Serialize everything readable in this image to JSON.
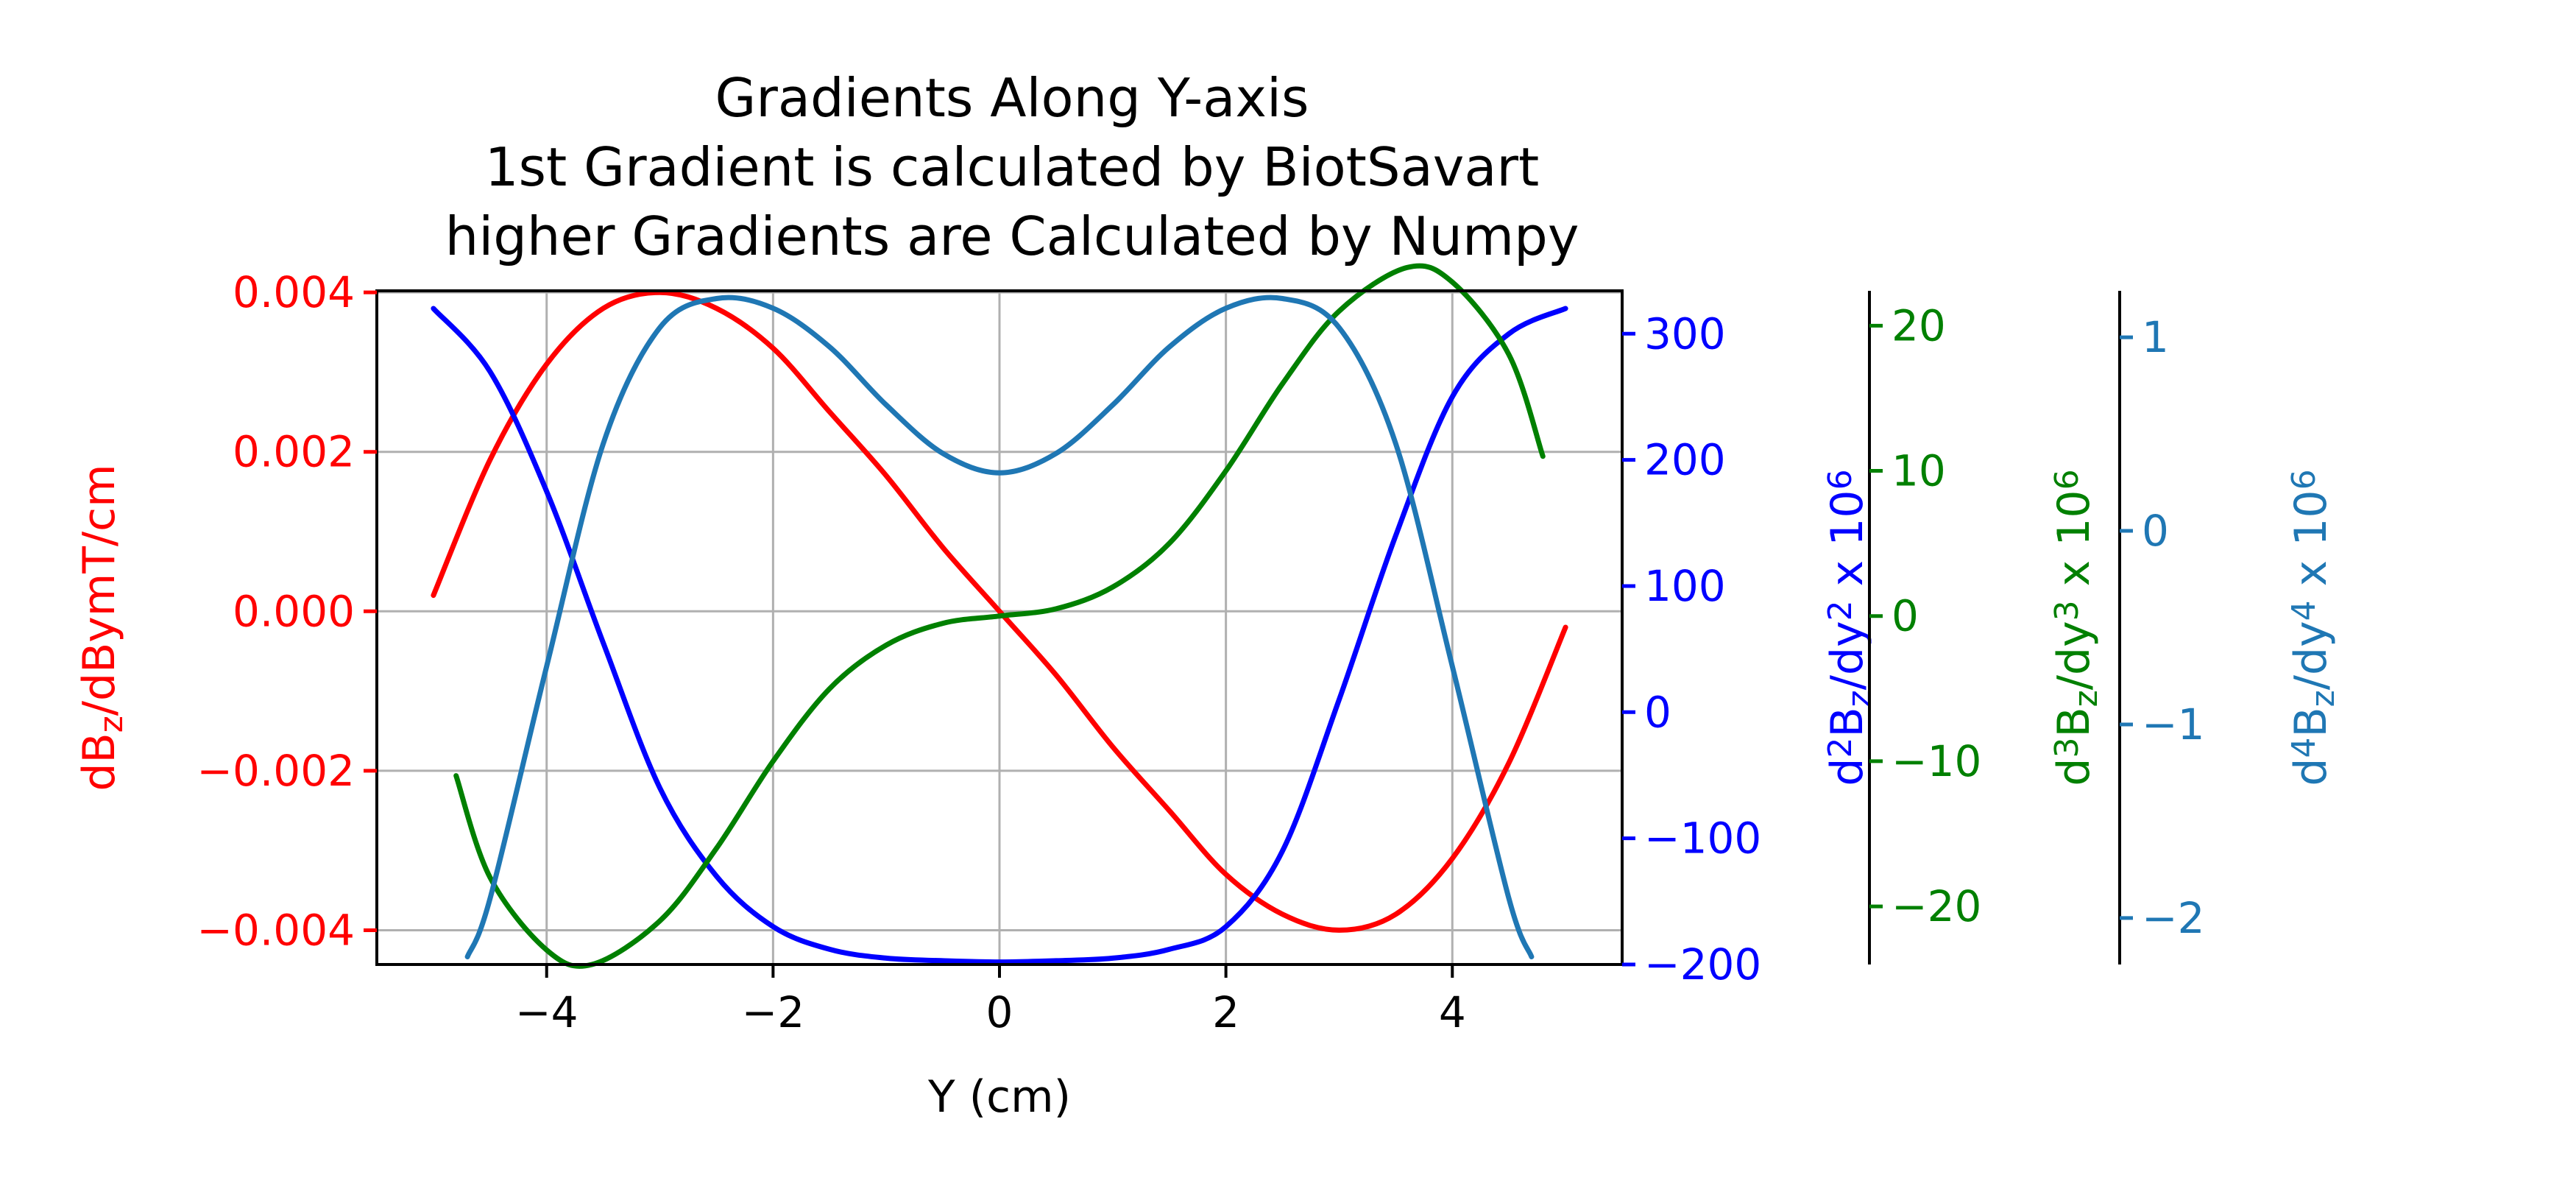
{
  "chart_data": {
    "type": "line",
    "title": [
      "Gradients Along Y-axis",
      "1st Gradient is calculated by BiotSavart",
      "higher Gradients are Calculated by Numpy"
    ],
    "xlabel": "Y (cm)",
    "xlim": [
      -5.5,
      5.5
    ],
    "xticks": [
      -4,
      -2,
      0,
      2,
      4
    ],
    "xtick_labels": [
      "−4",
      "−2",
      "0",
      "2",
      "4"
    ],
    "grid": true,
    "legend": "none",
    "axes": [
      {
        "id": "a1",
        "side": "left",
        "color": "#ff0000",
        "label_parts": [
          "dB",
          "z",
          "/dBymT/cm"
        ],
        "ylim": [
          -0.00443,
          0.00402
        ],
        "ticks": [
          0.004,
          0.002,
          0.0,
          -0.002,
          -0.004
        ],
        "tick_labels": [
          "0.004",
          "0.002",
          "0.000",
          "−0.002",
          "−0.004"
        ]
      },
      {
        "id": "a2",
        "side": "right",
        "color": "#0000ff",
        "label_parts": [
          "d",
          "2",
          "B",
          "z",
          "/dy",
          "2",
          "  x 10",
          "6"
        ],
        "ylim": [
          -200,
          334
        ],
        "ticks": [
          300,
          200,
          100,
          0,
          -100,
          -200
        ],
        "tick_labels": [
          "300",
          "200",
          "100",
          "0",
          "−100",
          "−200"
        ]
      },
      {
        "id": "a3",
        "side": "right",
        "color": "#008000",
        "label_parts": [
          "d",
          "3",
          "B",
          "z",
          "/dy",
          "3",
          "  x 10",
          "6"
        ],
        "ylim": [
          -24.0,
          22.4
        ],
        "ticks": [
          20,
          10,
          0,
          -10,
          -20
        ],
        "tick_labels": [
          "20",
          "10",
          "0",
          "−10",
          "−20"
        ]
      },
      {
        "id": "a4",
        "side": "right",
        "color": "#1f77b4",
        "label_parts": [
          "d",
          "4",
          "B",
          "z",
          "/dy",
          "4",
          "  x 10",
          "6"
        ],
        "ylim": [
          -2.24,
          1.24
        ],
        "ticks": [
          1,
          0,
          -1,
          -2
        ],
        "tick_labels": [
          "1",
          "0",
          "−1",
          "−2"
        ]
      }
    ],
    "series": [
      {
        "axis": "a1",
        "color": "#ff0000",
        "x": [
          -5.0,
          -4.5,
          -4.0,
          -3.5,
          -3.0,
          -2.5,
          -2.0,
          -1.5,
          -1.0,
          -0.5,
          0.0,
          0.5,
          1.0,
          1.5,
          2.0,
          2.5,
          3.0,
          3.5,
          4.0,
          4.5,
          5.0
        ],
        "y": [
          0.0002,
          0.0019,
          0.0031,
          0.0038,
          0.004,
          0.0038,
          0.0033,
          0.0025,
          0.0017,
          0.0008,
          0.0,
          -0.0008,
          -0.0017,
          -0.0025,
          -0.0033,
          -0.0038,
          -0.004,
          -0.0038,
          -0.0031,
          -0.0019,
          -0.0002
        ]
      },
      {
        "axis": "a2",
        "color": "#0000ff",
        "x": [
          -5.0,
          -4.5,
          -4.0,
          -3.5,
          -3.0,
          -2.5,
          -2.0,
          -1.5,
          -1.0,
          -0.5,
          0.0,
          0.5,
          1.0,
          1.5,
          2.0,
          2.5,
          3.0,
          3.5,
          4.0,
          4.5,
          5.0
        ],
        "y": [
          320,
          270,
          175,
          55,
          -60,
          -130,
          -170,
          -188,
          -195,
          -197,
          -198,
          -197,
          -195,
          -188,
          -170,
          -110,
          10,
          140,
          250,
          300,
          320
        ]
      },
      {
        "axis": "a3",
        "color": "#008000",
        "x": [
          -4.8,
          -4.5,
          -4.0,
          -3.6,
          -3.0,
          -2.5,
          -2.0,
          -1.5,
          -1.0,
          -0.5,
          0.0,
          0.5,
          1.0,
          1.5,
          2.0,
          2.5,
          3.0,
          3.6,
          4.0,
          4.5,
          4.8
        ],
        "y": [
          -11,
          -18,
          -23,
          -24,
          -21,
          -16,
          -10,
          -5,
          -2,
          -0.5,
          0.0,
          0.5,
          2,
          5,
          10,
          16,
          21,
          24,
          23,
          18,
          11
        ]
      },
      {
        "axis": "a4",
        "color": "#1f77b4",
        "x": [
          -4.7,
          -4.5,
          -4.0,
          -3.5,
          -3.0,
          -2.5,
          -2.0,
          -1.5,
          -1.0,
          -0.5,
          0.0,
          0.5,
          1.0,
          1.5,
          2.0,
          2.5,
          3.0,
          3.5,
          4.0,
          4.5,
          4.7
        ],
        "y": [
          -2.2,
          -1.9,
          -0.7,
          0.45,
          1.05,
          1.2,
          1.15,
          0.95,
          0.65,
          0.4,
          0.3,
          0.4,
          0.65,
          0.95,
          1.15,
          1.2,
          1.05,
          0.45,
          -0.7,
          -1.9,
          -2.2
        ]
      }
    ]
  }
}
